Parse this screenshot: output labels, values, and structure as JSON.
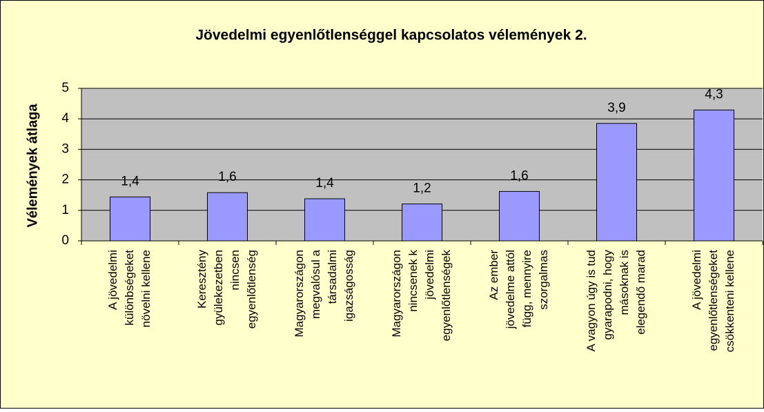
{
  "chart_data": {
    "type": "bar",
    "title": "Jövedelmi egyenlőtlenséggel kapcsolatos vélemények 2.",
    "y_label": "Vélemények átlaga",
    "categories": [
      [
        "A jövedelmi",
        "különbségeket",
        "növelni kellene"
      ],
      [
        "Keresztény",
        "gyülekezetben",
        "nincsen",
        "egyenlőtlenség"
      ],
      [
        "Magyarországon",
        "megvalósul a",
        "társadalmi",
        "igazságosság"
      ],
      [
        "Magyarországon",
        "nincsenek k",
        "jövedelmi",
        "egyenlőtlenségek"
      ],
      [
        "Az ember",
        "jövedelme attól",
        "függ, mennyire",
        "szorgalmas"
      ],
      [
        "A vagyon úgy is tud",
        "gyarapodni, hogy",
        "másoknak is",
        "elegendő marad"
      ],
      [
        "A jövedelmi",
        "egyenlőtlenségeket",
        "csökkenteni kellene"
      ]
    ],
    "values": [
      1.44,
      1.58,
      1.38,
      1.21,
      1.62,
      3.85,
      4.29
    ],
    "value_labels": [
      "1,4",
      "1,6",
      "1,4",
      "1,2",
      "1,6",
      "3,9",
      "4,3"
    ],
    "color": "#9999ff",
    "ylim": [
      0,
      5
    ],
    "yticks": [
      0,
      1,
      2,
      3,
      4,
      5
    ],
    "grid": true
  }
}
